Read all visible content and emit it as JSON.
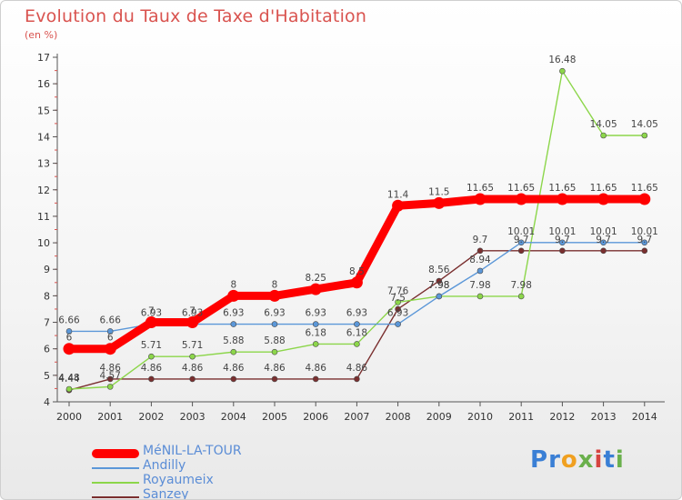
{
  "header": {
    "title": "Evolution du Taux de Taxe d'Habitation",
    "subtitle": "(en %)"
  },
  "logo": {
    "text": "Proxiti",
    "letters": [
      "P",
      "r",
      "o",
      "x",
      "i",
      "t",
      "i"
    ],
    "colors": [
      "#3a7fd5",
      "#3a7fd5",
      "#f0a020",
      "#6ab04c",
      "#d64541",
      "#3a7fd5",
      "#6ab04c"
    ]
  },
  "chart_data": {
    "type": "line",
    "x": [
      2000,
      2001,
      2002,
      2003,
      2004,
      2005,
      2006,
      2007,
      2008,
      2009,
      2010,
      2011,
      2012,
      2013,
      2014
    ],
    "ylim": [
      4,
      17
    ],
    "yticks": [
      4,
      5,
      6,
      7,
      8,
      9,
      10,
      11,
      12,
      13,
      14,
      15,
      16,
      17
    ],
    "grid": false,
    "legend_placement": "bottom-left",
    "series": [
      {
        "name": "MéNIL-LA-TOUR",
        "color": "#ff0000",
        "values": [
          6,
          6,
          7,
          7,
          8,
          8,
          8.25,
          8.5,
          11.4,
          11.5,
          11.65,
          11.65,
          11.65,
          11.65,
          11.65
        ],
        "labels": [
          "6",
          "6",
          "7",
          "7",
          "8",
          "8",
          "8.25",
          "8.5",
          "11.4",
          "11.5",
          "11.65",
          "11.65",
          "11.65",
          "11.65",
          "11.65"
        ]
      },
      {
        "name": "Andilly",
        "color": "#5b97d8",
        "values": [
          6.66,
          6.66,
          6.93,
          6.93,
          6.93,
          6.93,
          6.93,
          6.93,
          6.93,
          7.98,
          8.94,
          10.01,
          10.01,
          10.01,
          10.01
        ],
        "labels": [
          "6.66",
          "6.66",
          "6.93",
          "6.93",
          "6.93",
          "6.93",
          "6.93",
          "6.93",
          "6.93",
          "7.98",
          "8.94",
          "10.01",
          "10.01",
          "10.01",
          "10.01"
        ]
      },
      {
        "name": "Royaumeix",
        "color": "#8cd64a",
        "values": [
          4.48,
          4.57,
          5.71,
          5.71,
          5.88,
          5.88,
          6.18,
          6.18,
          7.76,
          7.98,
          7.98,
          7.98,
          16.48,
          14.05,
          14.05
        ],
        "labels": [
          "4.48",
          "4.57",
          "5.71",
          "5.71",
          "5.88",
          "5.88",
          "6.18",
          "6.18",
          "7.76",
          "7.98",
          "7.98",
          "7.98",
          "16.48",
          "14.05",
          "14.05"
        ]
      },
      {
        "name": "Sanzey",
        "color": "#7a2f2f",
        "values": [
          4.44,
          4.86,
          4.86,
          4.86,
          4.86,
          4.86,
          4.86,
          4.86,
          7.5,
          8.56,
          9.7,
          9.7,
          9.7,
          9.7,
          9.7
        ],
        "labels": [
          "4.44",
          "4.86",
          "4.86",
          "4.86",
          "4.86",
          "4.86",
          "4.86",
          "4.86",
          "7.5",
          "8.56",
          "9.7",
          "9.7",
          "9.7",
          "9.7",
          "9.7"
        ]
      }
    ]
  }
}
